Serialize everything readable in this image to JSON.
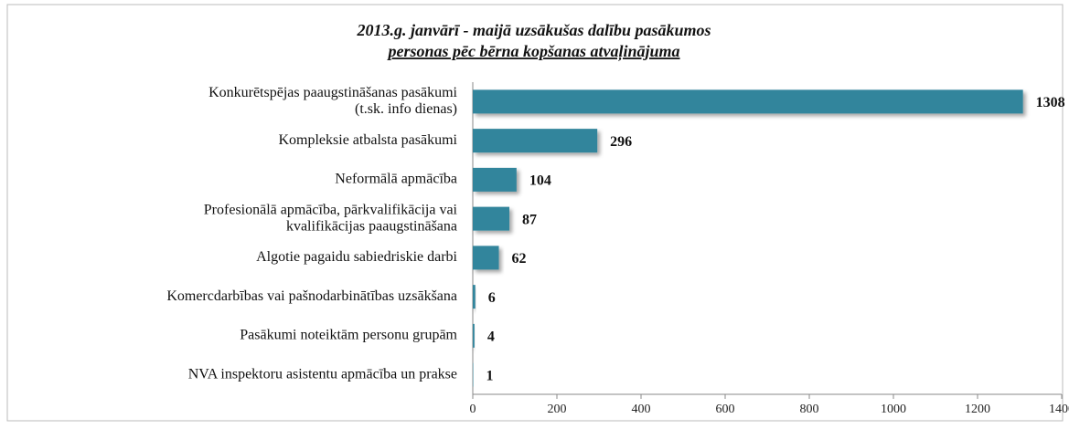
{
  "chart_data": {
    "type": "bar",
    "orientation": "horizontal",
    "title": "2013.g. janvārī - maijā uzsākušas dalību pasākumos",
    "subtitle": "personas pēc bērna kopšanas atvaļinājuma",
    "categories": [
      [
        "Konkurētspējas paaugstināšanas pasākumi",
        "(t.sk. info dienas)"
      ],
      [
        "Kompleksie atbalsta pasākumi"
      ],
      [
        "Neformālā apmācība"
      ],
      [
        "Profesionālā apmācība, pārkvalifikācija vai",
        "kvalifikācijas paaugstināšana"
      ],
      [
        "Algotie pagaidu sabiedriskie darbi"
      ],
      [
        "Komercdarbības vai pašnodarbinātības uzsākšana"
      ],
      [
        "Pasākumi noteiktām personu grupām"
      ],
      [
        "NVA inspektoru asistentu apmācība un prakse"
      ]
    ],
    "values": [
      1308,
      296,
      104,
      87,
      62,
      6,
      4,
      1
    ],
    "color": "#31859c",
    "xlim": [
      0,
      1400
    ],
    "xticks": [
      0,
      200,
      400,
      600,
      800,
      1000,
      1200,
      1400
    ]
  }
}
